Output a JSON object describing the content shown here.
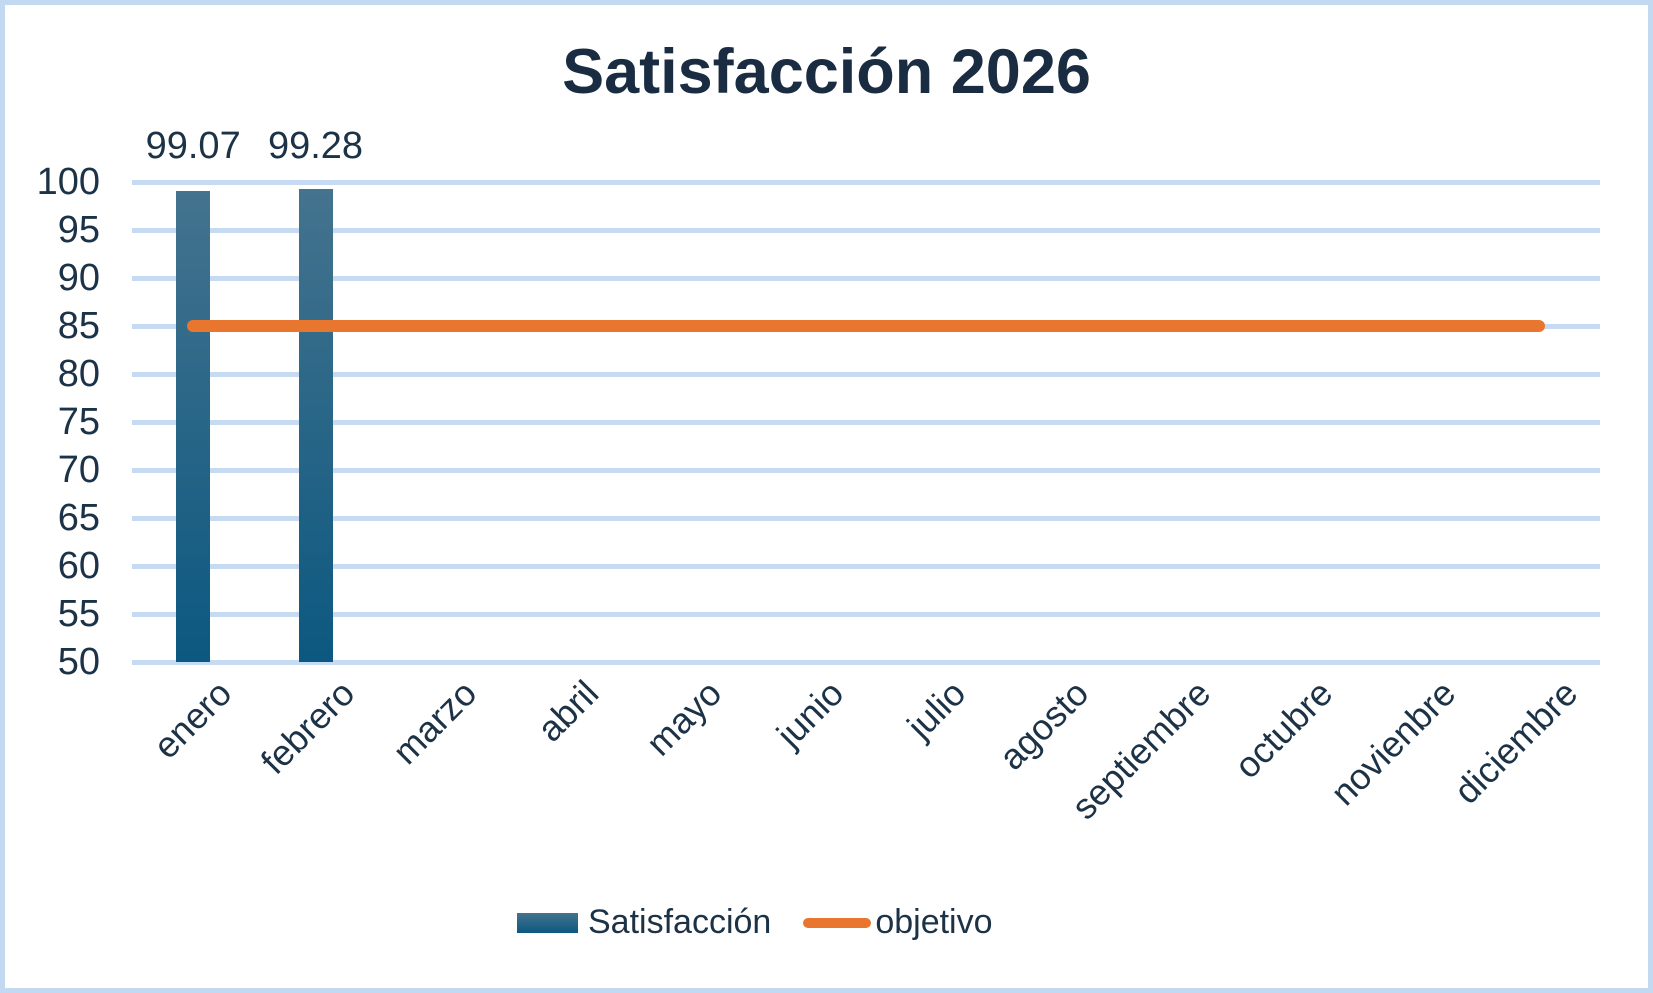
{
  "page": {
    "background_color": "#ffffff",
    "frame_color": "#c3d9f1"
  },
  "chart_data": {
    "type": "bar",
    "title": "Satisfacción 2026",
    "categories": [
      "enero",
      "febrero",
      "marzo",
      "abril",
      "mayo",
      "junio",
      "julio",
      "agosto",
      "septiembre",
      "octubre",
      "novienbre",
      "diciembre"
    ],
    "series": [
      {
        "name": "Satisfacción",
        "type": "bar",
        "color_top": "#44738e",
        "color_bottom": "#0c5880",
        "values": [
          99.07,
          99.28,
          null,
          null,
          null,
          null,
          null,
          null,
          null,
          null,
          null,
          null
        ],
        "data_labels": [
          "99.07",
          "99.28"
        ]
      },
      {
        "name": "objetivo",
        "type": "line",
        "color": "#e8762f",
        "values": [
          85,
          85,
          85,
          85,
          85,
          85,
          85,
          85,
          85,
          85,
          85,
          85
        ]
      }
    ],
    "ylim": [
      50,
      100
    ],
    "y_ticks": [
      100,
      95,
      90,
      85,
      80,
      75,
      70,
      65,
      60,
      55,
      50
    ],
    "grid": true,
    "gridline_color": "#c6dbf2",
    "text_color": "#1c3246",
    "legend_position": "bottom"
  }
}
